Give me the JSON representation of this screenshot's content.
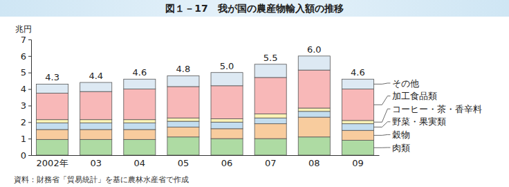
{
  "chart_data": {
    "type": "bar",
    "stacked": true,
    "title": "図１－17　我が国の農産物輸入額の推移",
    "y_label": "兆円",
    "source": "資料：財務省「貿易統計」を基に農林水産省で作成",
    "categories": [
      "2002年",
      "03",
      "04",
      "05",
      "06",
      "07",
      "08",
      "09"
    ],
    "series": [
      {
        "name": "肉類",
        "color": "#aedba3",
        "values": [
          0.95,
          0.95,
          0.95,
          1.1,
          1.0,
          1.0,
          1.1,
          0.9
        ]
      },
      {
        "name": "穀物",
        "color": "#f8cc9e",
        "values": [
          0.6,
          0.6,
          0.6,
          0.6,
          0.6,
          0.9,
          1.2,
          0.6
        ]
      },
      {
        "name": "野菜・果実類",
        "color": "#c3ddef",
        "values": [
          0.4,
          0.4,
          0.4,
          0.35,
          0.4,
          0.35,
          0.35,
          0.4
        ]
      },
      {
        "name": "コーヒー・茶・香辛料",
        "color": "#fbf2b6",
        "values": [
          0.2,
          0.2,
          0.2,
          0.2,
          0.2,
          0.25,
          0.2,
          0.2
        ]
      },
      {
        "name": "加工食品類",
        "color": "#f8b8b8",
        "values": [
          1.6,
          1.7,
          1.85,
          1.9,
          2.0,
          2.2,
          2.3,
          1.9
        ]
      },
      {
        "name": "その他",
        "color": "#dde9f3",
        "values": [
          0.55,
          0.55,
          0.6,
          0.65,
          0.8,
          0.8,
          0.85,
          0.6
        ]
      }
    ],
    "totals": [
      4.3,
      4.4,
      4.6,
      4.8,
      5.0,
      5.5,
      6.0,
      4.6
    ],
    "totals_labels": [
      "4.3",
      "4.4",
      "4.6",
      "4.8",
      "5.0",
      "5.5",
      "6.0",
      "4.6"
    ],
    "ylim": [
      0,
      7
    ],
    "yticks": [
      0,
      1,
      2,
      3,
      4,
      5,
      6,
      7
    ],
    "grid": false,
    "legend": "right"
  }
}
